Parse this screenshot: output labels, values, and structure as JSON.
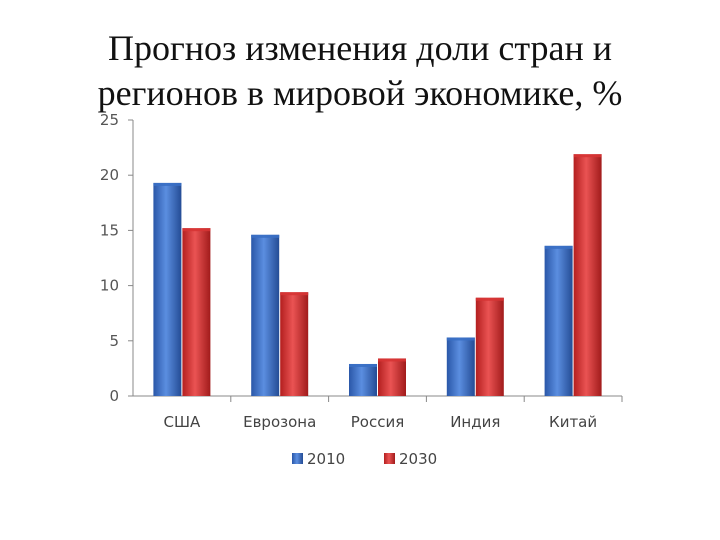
{
  "title_line1": "Прогноз изменения доли стран и",
  "title_line2": "регионов в мировой экономике, %",
  "chart_data": {
    "type": "bar",
    "title": "Прогноз изменения доли стран и регионов в мировой экономике, %",
    "categories": [
      "США",
      "Еврозона",
      "Россия",
      "Индия",
      "Китай"
    ],
    "series": [
      {
        "name": "2010",
        "values": [
          19.3,
          14.6,
          2.9,
          5.3,
          13.6
        ],
        "color": "#3a6fc4"
      },
      {
        "name": "2030",
        "values": [
          15.2,
          9.4,
          3.4,
          8.9,
          21.9
        ],
        "color": "#d63434"
      }
    ],
    "ylim": [
      0,
      25
    ],
    "yticks": [
      "0",
      "5",
      "10",
      "15",
      "20",
      "25"
    ],
    "xlabel": "",
    "ylabel": "",
    "grid": false,
    "legend": "bottom"
  }
}
